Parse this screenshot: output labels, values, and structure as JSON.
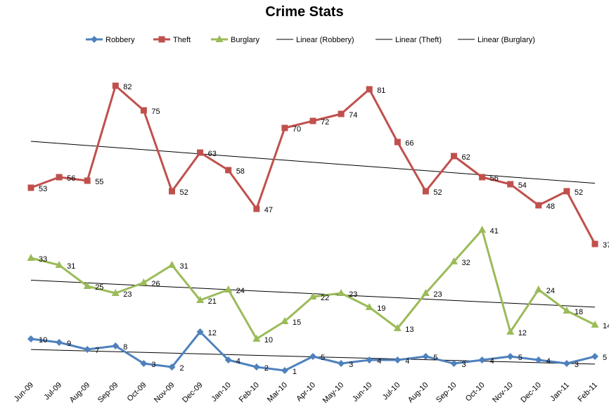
{
  "chart_data": {
    "type": "line",
    "title": "Crime Stats",
    "xlabel": "",
    "ylabel": "",
    "categories": [
      "Jun-09",
      "Jul-09",
      "Aug-09",
      "Sep-09",
      "Oct-09",
      "Nov-09",
      "Dec-09",
      "Jan-10",
      "Feb-10",
      "Mar-10",
      "Apr-10",
      "May-10",
      "Jun-10",
      "Jul-10",
      "Aug-10",
      "Sep-10",
      "Oct-10",
      "Nov-10",
      "Dec-10",
      "Jan-11",
      "Feb-11"
    ],
    "series": [
      {
        "name": "Robbery",
        "marker": "diamond",
        "color": "#4f81bd",
        "values": [
          10,
          9,
          7,
          8,
          3,
          2,
          12,
          4,
          2,
          1,
          5,
          3,
          4,
          4,
          5,
          3,
          4,
          5,
          4,
          3,
          5
        ]
      },
      {
        "name": "Theft",
        "marker": "square",
        "color": "#c0504d",
        "values": [
          53,
          56,
          55,
          82,
          75,
          52,
          63,
          58,
          47,
          70,
          72,
          74,
          81,
          66,
          52,
          62,
          56,
          54,
          48,
          52,
          37
        ]
      },
      {
        "name": "Burglary",
        "marker": "triangle",
        "color": "#9bbb59",
        "values": [
          33,
          31,
          25,
          23,
          26,
          31,
          21,
          24,
          10,
          15,
          22,
          23,
          19,
          13,
          23,
          32,
          41,
          12,
          24,
          18,
          14
        ]
      }
    ],
    "trendlines": [
      {
        "name": "Linear (Robbery)",
        "color": "#000000"
      },
      {
        "name": "Linear (Theft)",
        "color": "#000000"
      },
      {
        "name": "Linear (Burglary)",
        "color": "#000000"
      }
    ],
    "ylim": [
      0,
      90
    ],
    "grid": false,
    "legend": "top"
  }
}
